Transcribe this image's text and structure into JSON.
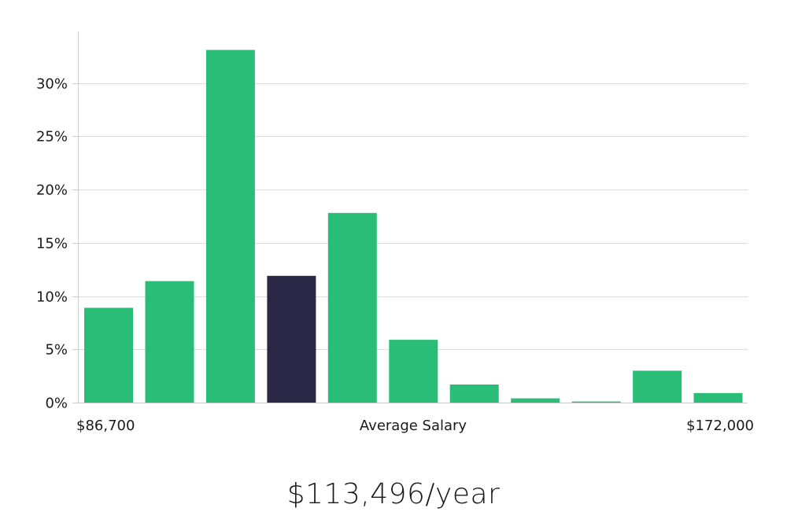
{
  "chart_data": {
    "type": "bar",
    "values": [
      8.9,
      11.4,
      33.1,
      11.9,
      17.8,
      5.9,
      1.7,
      0.4,
      0.1,
      3.0,
      0.9
    ],
    "highlight_index": 3,
    "colors": {
      "bar": "#2abd77",
      "highlight": "#2a2645",
      "grid": "#dddddd",
      "axis": "#cccccc"
    },
    "yticks": [
      0,
      5,
      10,
      15,
      20,
      25,
      30
    ],
    "ytick_labels": [
      "0%",
      "5%",
      "10%",
      "15%",
      "20%",
      "25%",
      "30%"
    ],
    "ylim": [
      0,
      35
    ],
    "x_min_label": "$86,700",
    "x_center_label": "Average Salary",
    "x_max_label": "$172,000",
    "grid": true
  },
  "headline": "$113,496/year"
}
